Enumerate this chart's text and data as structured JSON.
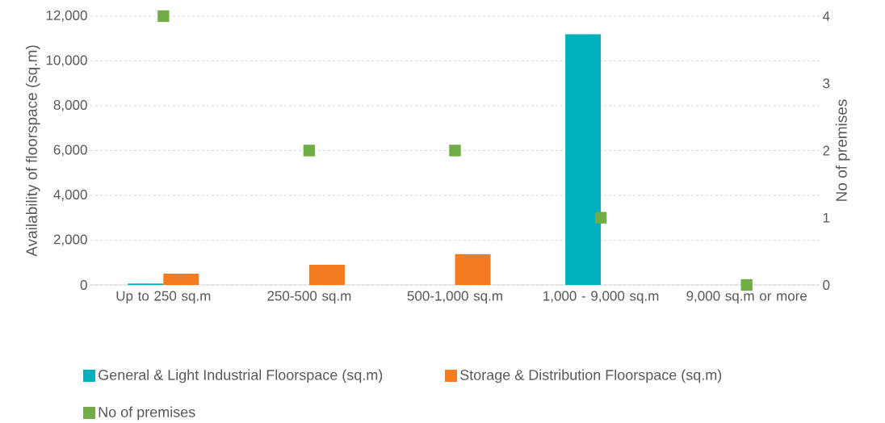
{
  "chart_data": {
    "type": "bar",
    "ylabel": "Availability of floorspace (sq.m)",
    "y2label": "No of premises",
    "categories": [
      "Up to 250 sq.m",
      "250-500 sq.m",
      "500-1,000 sq.m",
      "1,000 - 9,000 sq.m",
      "9,000 sq.m or more"
    ],
    "series": [
      {
        "name": "General & Light Industrial Floorspace (sq.m)",
        "color": "#00b1bd",
        "values": [
          60,
          null,
          null,
          11200,
          null
        ]
      },
      {
        "name": "Storage & Distribution Floorspace (sq.m)",
        "color": "#f47b20",
        "values": [
          500,
          900,
          1380,
          null,
          null
        ]
      },
      {
        "name": "No of premises",
        "type": "scatter",
        "axis": "y2",
        "marker": "square",
        "color": "#70ad47",
        "values": [
          4,
          2,
          2,
          1,
          0
        ]
      }
    ],
    "ylim": [
      0,
      12000
    ],
    "yticks": [
      0,
      {
        "value": 2000,
        "label": "2,000"
      },
      {
        "value": 4000,
        "label": "4,000"
      },
      {
        "value": 6000,
        "label": "6,000"
      },
      {
        "value": 8000,
        "label": "8,000"
      },
      {
        "value": 10000,
        "label": "10,000"
      },
      {
        "value": 12000,
        "label": "12,000"
      }
    ],
    "y2lim": [
      0,
      4
    ],
    "y2ticks": [
      0,
      1,
      2,
      3,
      4
    ],
    "grid": "y",
    "legend": "bottom"
  }
}
